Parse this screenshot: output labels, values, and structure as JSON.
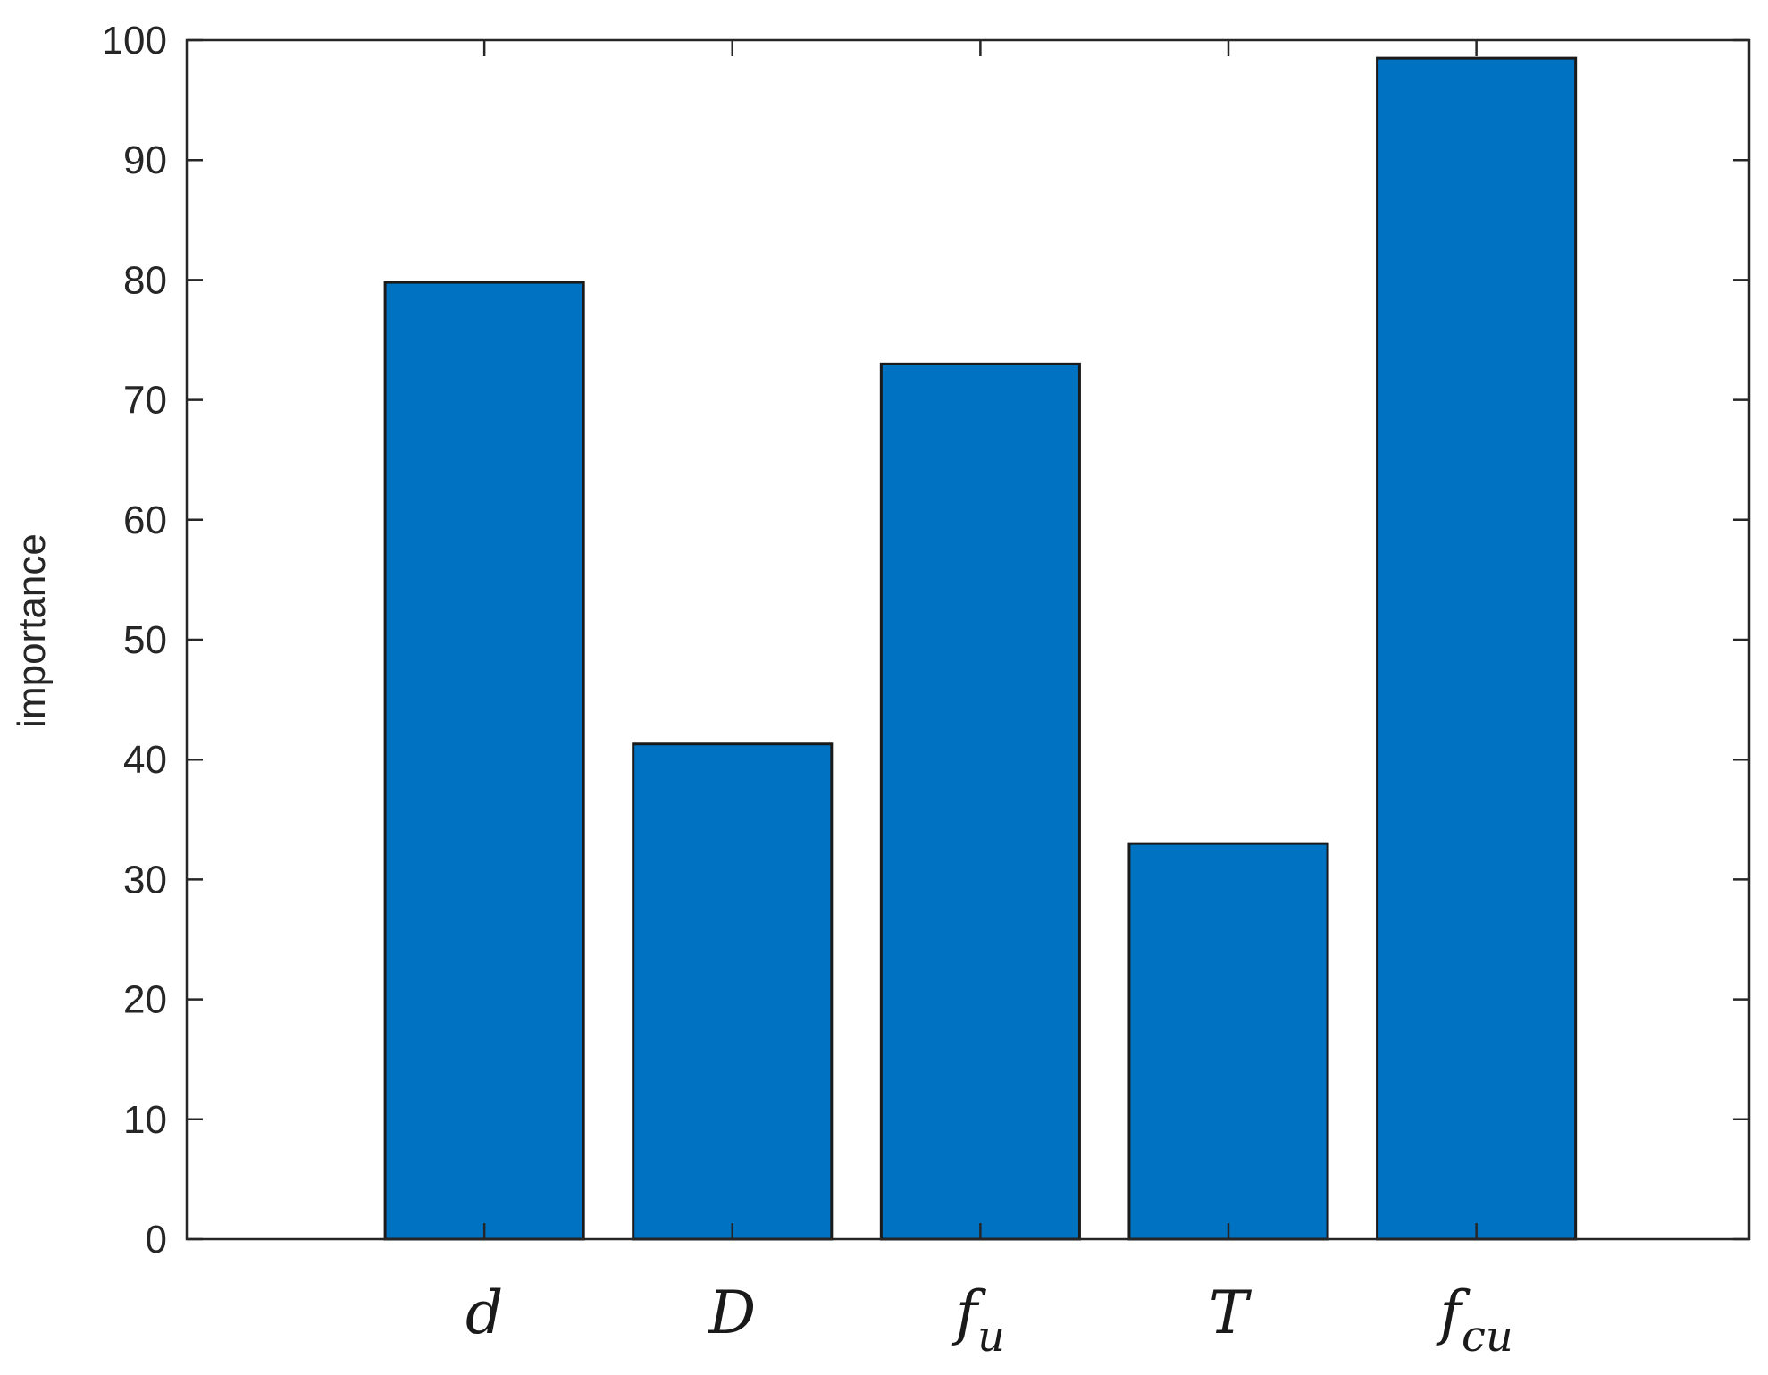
{
  "chart_data": {
    "type": "bar",
    "categories": [
      {
        "base": "d",
        "sub": ""
      },
      {
        "base": "D",
        "sub": ""
      },
      {
        "base": "f",
        "sub": "u"
      },
      {
        "base": "T",
        "sub": ""
      },
      {
        "base": "f",
        "sub": "cu"
      }
    ],
    "values": [
      79.8,
      41.3,
      73.0,
      33.0,
      98.5
    ],
    "title": "",
    "xlabel": "",
    "ylabel": "importance",
    "ylim": [
      0,
      100
    ],
    "yticks": [
      0,
      10,
      20,
      30,
      40,
      50,
      60,
      70,
      80,
      90,
      100
    ],
    "xlim": [
      -0.2,
      6.1
    ],
    "grid": false,
    "colors": {
      "bar_fill": "#0072C2",
      "bar_edge": "#1a1a1a",
      "axes": "#262626"
    }
  }
}
